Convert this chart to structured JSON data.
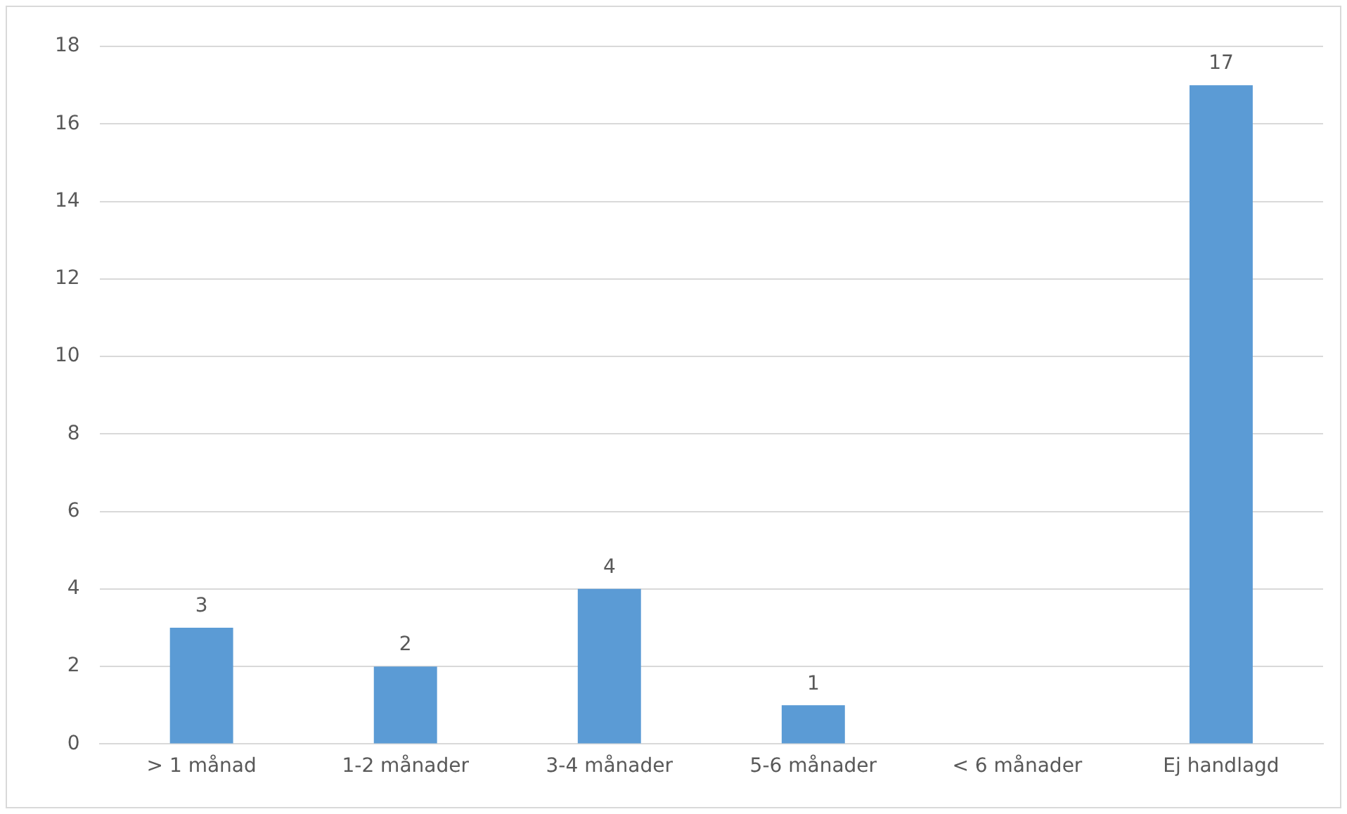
{
  "chart_data": {
    "type": "bar",
    "categories": [
      "> 1 månad",
      "1-2 månader",
      "3-4 månader",
      "5-6 månader",
      "< 6 månader",
      "Ej handlagd"
    ],
    "values": [
      3,
      2,
      4,
      1,
      0,
      17
    ],
    "value_labels": [
      "3",
      "2",
      "4",
      "1",
      null,
      "17"
    ],
    "color": "#5b9bd5",
    "ylim": [
      0,
      18
    ],
    "yticks": [
      0,
      2,
      4,
      6,
      8,
      10,
      12,
      14,
      16,
      18
    ],
    "grid": "y",
    "legend": false
  }
}
